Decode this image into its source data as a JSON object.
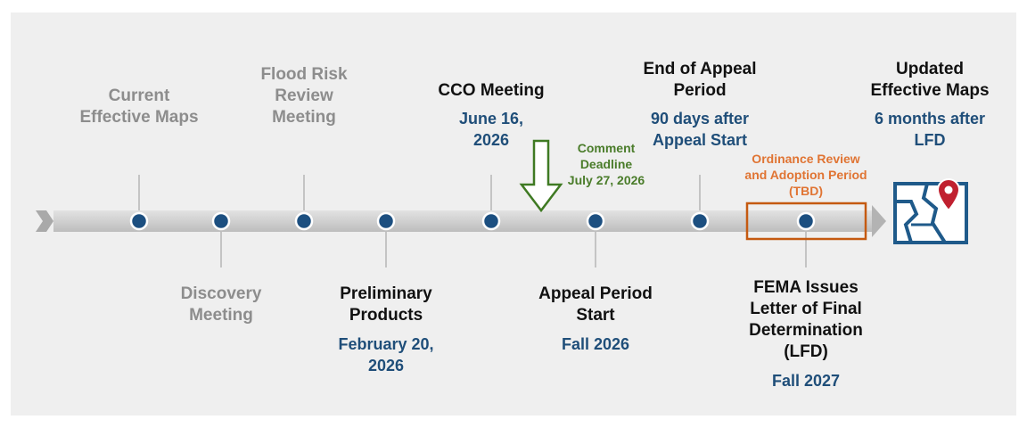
{
  "milestones": [
    {
      "id": "current-effective-maps",
      "title": [
        "Current",
        "Effective Maps"
      ],
      "date": []
    },
    {
      "id": "discovery-meeting",
      "title": [
        "Discovery",
        "Meeting"
      ],
      "date": []
    },
    {
      "id": "flood-risk-review-meeting",
      "title": [
        "Flood Risk",
        "Review",
        "Meeting"
      ],
      "date": []
    },
    {
      "id": "preliminary-products",
      "title": [
        "Preliminary",
        "Products"
      ],
      "date": [
        "February 20,",
        "2026"
      ]
    },
    {
      "id": "cco-meeting",
      "title": [
        "CCO Meeting"
      ],
      "date": [
        "June 16,",
        "2026"
      ]
    },
    {
      "id": "appeal-period-start",
      "title": [
        "Appeal Period",
        "Start"
      ],
      "date": [
        "Fall 2026"
      ]
    },
    {
      "id": "end-of-appeal-period",
      "title": [
        "End of Appeal",
        "Period"
      ],
      "date": [
        "90 days after",
        "Appeal Start"
      ]
    },
    {
      "id": "fema-lfd",
      "title": [
        "FEMA Issues",
        "Letter of Final",
        "Determination",
        "(LFD)"
      ],
      "date": [
        "Fall 2027"
      ]
    },
    {
      "id": "updated-effective-maps",
      "title": [
        "Updated",
        "Effective Maps"
      ],
      "date": [
        "6 months after",
        "LFD"
      ]
    }
  ],
  "comment_deadline": [
    "Comment",
    "Deadline",
    "July 27, 2026"
  ],
  "ordinance_period": [
    "Ordinance Review",
    "and Adoption Period",
    "(TBD)"
  ],
  "colors": {
    "past": "#8d8d8d",
    "title": "#111111",
    "date": "#1f4e79",
    "dot": "#1c4f80",
    "comment": "#4a7c2a",
    "ordinance": "#e07433",
    "map_icon": "#1f5a8a",
    "pin": "#c0202f"
  },
  "icons": {
    "end": "flood-map-pin-icon"
  }
}
